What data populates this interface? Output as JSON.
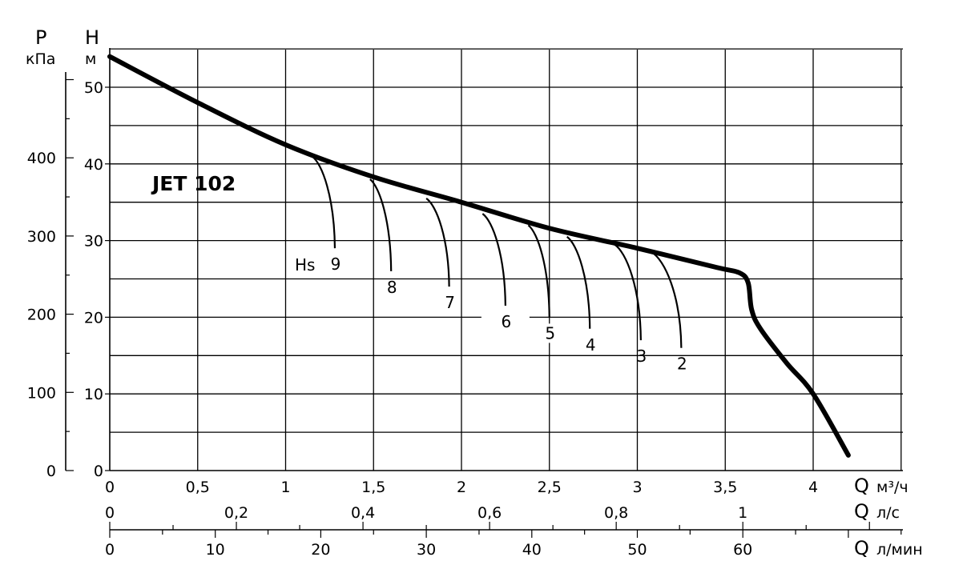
{
  "chart_data": {
    "type": "line",
    "title": "JET 102",
    "y_left_outer": {
      "symbol": "P",
      "unit": "кПа",
      "ticks": [
        "0",
        "100",
        "200",
        "300",
        "400"
      ],
      "values": [
        0,
        100,
        200,
        300,
        400
      ]
    },
    "y_left_inner": {
      "symbol": "H",
      "unit": "м",
      "ticks": [
        "0",
        "10",
        "20",
        "30",
        "40",
        "50"
      ],
      "values": [
        0,
        10,
        20,
        30,
        40,
        50
      ],
      "ylim": [
        0,
        55
      ]
    },
    "x_axes": [
      {
        "symbol": "Q",
        "unit": "м³/ч",
        "ticks": [
          "0",
          "0,5",
          "1",
          "1,5",
          "2",
          "2,5",
          "3",
          "3,5",
          "4"
        ],
        "values": [
          0,
          0.5,
          1,
          1.5,
          2,
          2.5,
          3,
          3.5,
          4
        ]
      },
      {
        "symbol": "Q",
        "unit": "л/с",
        "ticks": [
          "0",
          "0,2",
          "0,4",
          "0,6",
          "0,8",
          "1"
        ],
        "values": [
          0,
          0.2,
          0.4,
          0.6,
          0.8,
          1
        ]
      },
      {
        "symbol": "Q",
        "unit": "л/мин",
        "ticks": [
          "0",
          "10",
          "20",
          "30",
          "40",
          "50",
          "60"
        ],
        "values": [
          0,
          10,
          20,
          30,
          40,
          50,
          60
        ]
      }
    ],
    "xlim": [
      0,
      4.5
    ],
    "grid": true,
    "main_curve": {
      "x": [
        0,
        0.5,
        1,
        1.5,
        2,
        2.5,
        3,
        3.45,
        3.58,
        3.63,
        3.65,
        3.7,
        3.85,
        4,
        4.2
      ],
      "y": [
        54,
        48,
        42.5,
        38.3,
        35,
        31.6,
        29,
        26.5,
        25.8,
        24.5,
        21,
        18.5,
        14,
        10,
        2
      ]
    },
    "hs_label": "Hs",
    "suction_curves": [
      {
        "label": "9",
        "start": [
          1.15,
          41
        ],
        "end": [
          1.28,
          29
        ]
      },
      {
        "label": "8",
        "start": [
          1.48,
          38
        ],
        "end": [
          1.6,
          26
        ]
      },
      {
        "label": "7",
        "start": [
          1.8,
          35.5
        ],
        "end": [
          1.93,
          24
        ]
      },
      {
        "label": "6",
        "start": [
          2.12,
          33.5
        ],
        "end": [
          2.25,
          21.5
        ]
      },
      {
        "label": "5",
        "start": [
          2.38,
          32
        ],
        "end": [
          2.5,
          20
        ]
      },
      {
        "label": "4",
        "start": [
          2.6,
          30.5
        ],
        "end": [
          2.73,
          18.5
        ]
      },
      {
        "label": "3",
        "start": [
          2.87,
          29.5
        ],
        "end": [
          3.02,
          17
        ]
      },
      {
        "label": "2",
        "start": [
          3.08,
          28.5
        ],
        "end": [
          3.25,
          16
        ]
      }
    ]
  }
}
